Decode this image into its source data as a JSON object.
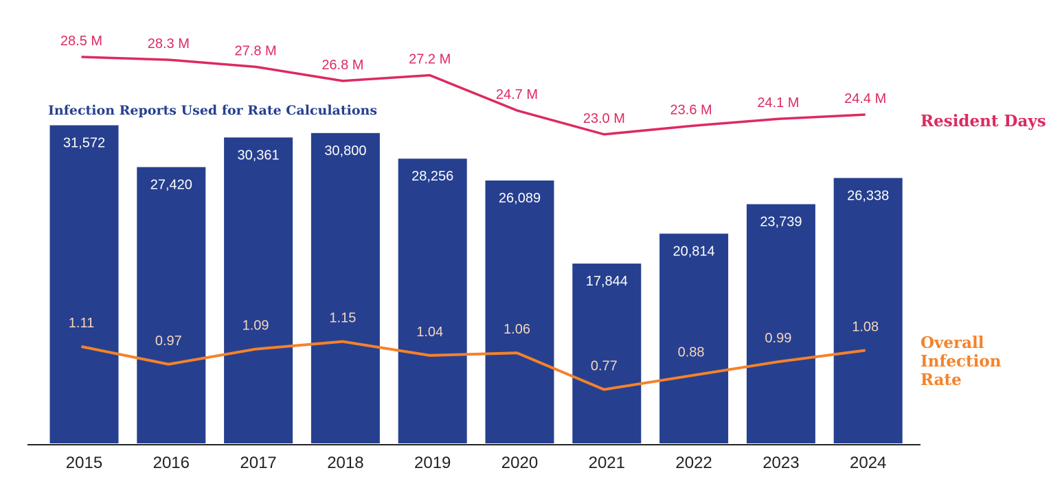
{
  "chart_data": {
    "type": "bar",
    "categories": [
      "2015",
      "2016",
      "2017",
      "2018",
      "2019",
      "2020",
      "2021",
      "2022",
      "2023",
      "2024"
    ],
    "series": [
      {
        "name": "Infection Reports Used for Rate Calculations",
        "type": "bar",
        "values": [
          31572,
          27420,
          30361,
          30800,
          28256,
          26089,
          17844,
          20814,
          23739,
          26338
        ],
        "labels": [
          "31,572",
          "27,420",
          "30,361",
          "30,800",
          "28,256",
          "26,089",
          "17,844",
          "20,814",
          "23,739",
          "26,338"
        ],
        "color": "#26408F",
        "label_color": "#ffffff"
      },
      {
        "name": "Resident Days",
        "type": "line",
        "values": [
          28.5,
          28.3,
          27.8,
          26.8,
          27.2,
          24.7,
          23.0,
          23.6,
          24.1,
          24.4
        ],
        "labels": [
          "28.5 M",
          "28.3 M",
          "27.8 M",
          "26.8 M",
          "27.2 M",
          "24.7 M",
          "23.0 M",
          "23.6 M",
          "24.1 M",
          "24.4 M"
        ],
        "color": "#DC2A5F"
      },
      {
        "name": "Overall Infection Rate",
        "name_lines": [
          "Overall",
          "Infection",
          "Rate"
        ],
        "type": "line",
        "values": [
          1.11,
          0.97,
          1.09,
          1.15,
          1.04,
          1.06,
          0.77,
          0.88,
          0.99,
          1.08
        ],
        "labels": [
          "1.11",
          "0.97",
          "1.09",
          "1.15",
          "1.04",
          "1.06",
          "0.77",
          "0.88",
          "0.99",
          "1.08"
        ],
        "color": "#F5822A",
        "label_color": "#F6D6BC"
      }
    ],
    "legend_placement": "inline-right",
    "grid": false,
    "axis_color": "#222222",
    "tick_color": "#222222"
  }
}
